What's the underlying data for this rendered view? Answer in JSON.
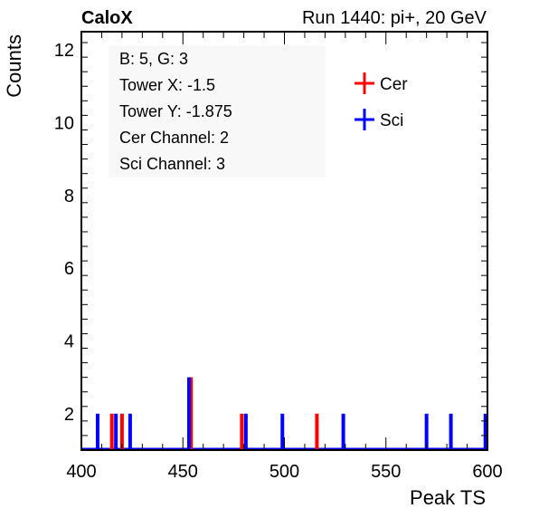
{
  "header": {
    "left_title": "CaloX",
    "right_title": "Run 1440: pi+, 20 GeV"
  },
  "info_box": {
    "lines": [
      "B: 5, G: 3",
      "Tower X: -1.5",
      "Tower Y: -1.875",
      "Cer Channel: 2",
      "Sci Channel: 3"
    ]
  },
  "colors": {
    "cer": "#ff0000",
    "sci": "#0000ff",
    "axis": "#000000",
    "background": "#ffffff",
    "info_box_bg": "#f8f8f8"
  },
  "chart_data": {
    "type": "bar",
    "xlabel": "Peak TS",
    "ylabel": "Counts",
    "xlim": [
      400,
      600
    ],
    "ylim": [
      1,
      12.5
    ],
    "x_ticks": [
      400,
      450,
      500,
      550,
      600
    ],
    "y_ticks": [
      2,
      4,
      6,
      8,
      10,
      12
    ],
    "legend_position": "top-right",
    "grid": false,
    "series": [
      {
        "name": "Cer",
        "color": "#ff0000",
        "x": [
          415,
          420,
          454,
          479,
          516
        ],
        "values": [
          2,
          2,
          3,
          2,
          2
        ]
      },
      {
        "name": "Sci",
        "color": "#0000ff",
        "x": [
          408,
          417,
          424,
          453,
          481,
          499,
          529,
          570,
          582,
          599
        ],
        "values": [
          2,
          2,
          2,
          3,
          2,
          2,
          2,
          2,
          2,
          2
        ]
      }
    ]
  }
}
